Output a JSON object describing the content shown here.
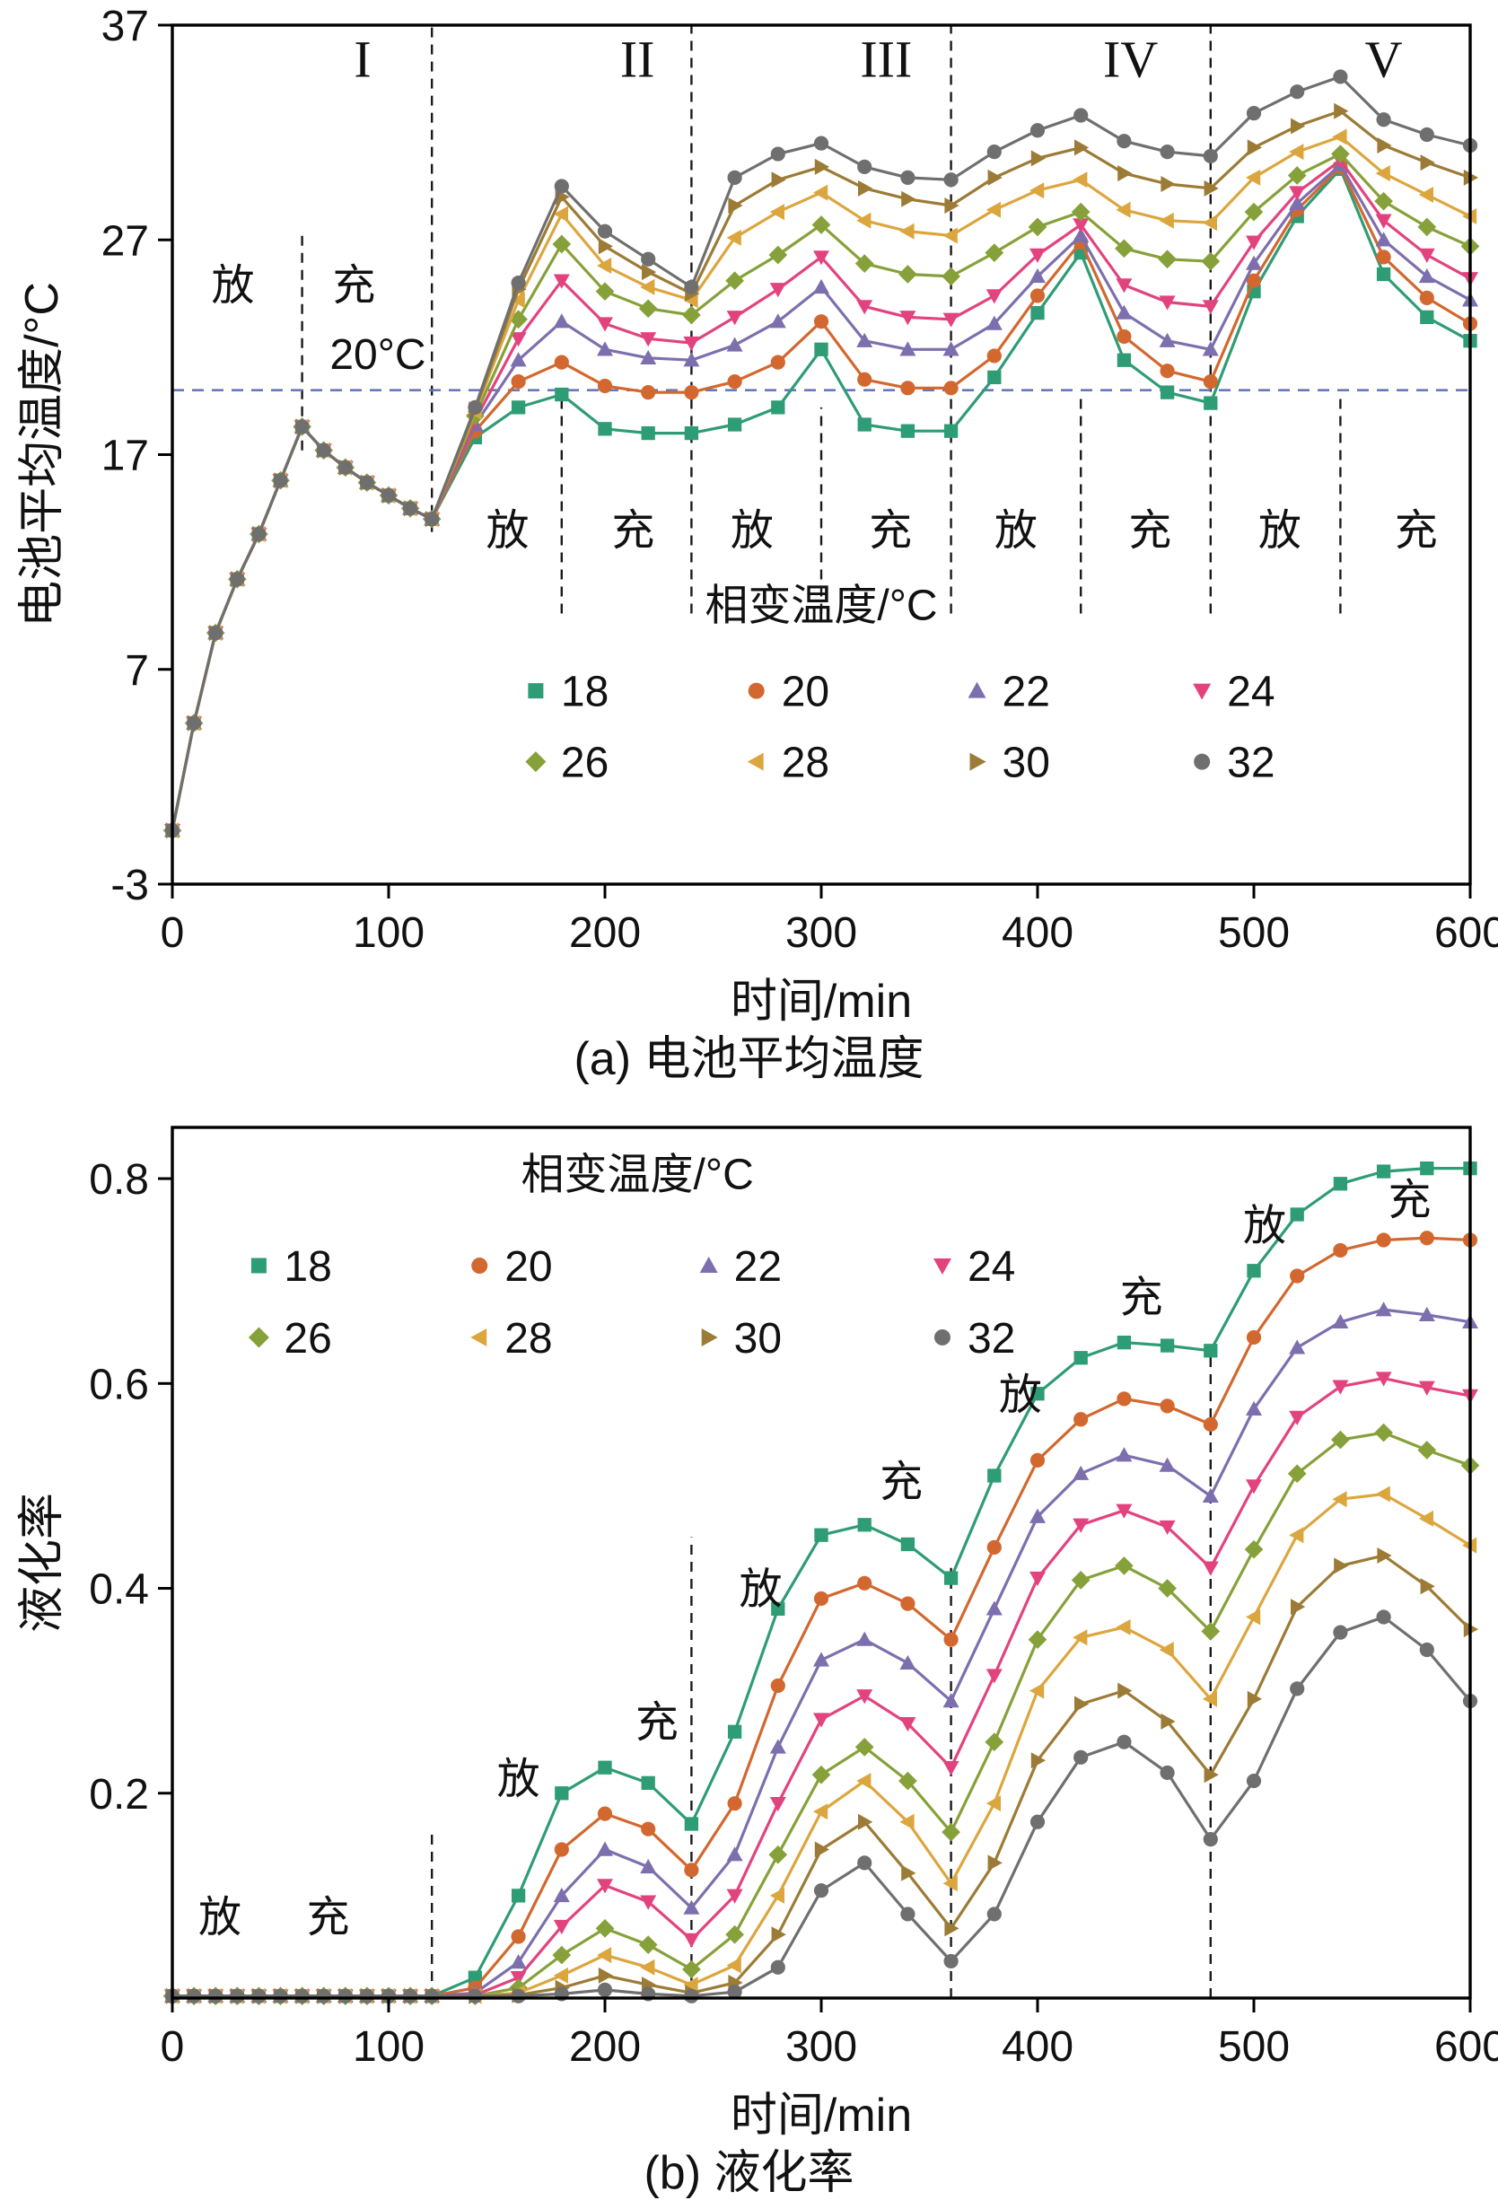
{
  "captions": {
    "a": "(a) 电池平均温度",
    "b": "(b) 液化率"
  },
  "chart_data": [
    {
      "id": "a",
      "type": "line",
      "title": "",
      "xlabel": "时间/min",
      "ylabel": "电池平均温度/°C",
      "xlim": [
        0,
        600
      ],
      "ylim": [
        -3,
        37
      ],
      "xticks": [
        0,
        100,
        200,
        300,
        400,
        500,
        600
      ],
      "yticks": [
        -3,
        7,
        17,
        27,
        37
      ],
      "grid": false,
      "plot": {
        "l": 192,
        "t": 28,
        "r": 1638,
        "b": 985
      },
      "legend": {
        "title": "相变温度/°C",
        "title_x": 300,
        "title_y": 9.3,
        "cols": [
          168,
          270,
          372,
          476
        ],
        "row_y": [
          6.0,
          2.7
        ],
        "rows": [
          [
            "18",
            "20",
            "22",
            "24"
          ],
          [
            "26",
            "28",
            "30",
            "32"
          ]
        ]
      },
      "ref_line": {
        "y": 20,
        "label": "20°C",
        "label_x": 95,
        "label_y": 21.0,
        "color": "#6677bb"
      },
      "region_labels": [
        {
          "text": "I",
          "x": 88,
          "y": 34.6
        },
        {
          "text": "II",
          "x": 215,
          "y": 34.6
        },
        {
          "text": "III",
          "x": 330,
          "y": 34.6
        },
        {
          "text": "IV",
          "x": 443,
          "y": 34.6
        },
        {
          "text": "V",
          "x": 560,
          "y": 34.6
        }
      ],
      "phase_labels": [
        {
          "t": "放",
          "x": 28,
          "y": 24.2
        },
        {
          "t": "充",
          "x": 84,
          "y": 24.2
        },
        {
          "t": "放",
          "x": 155,
          "y": 12.8
        },
        {
          "t": "充",
          "x": 213,
          "y": 12.8
        },
        {
          "t": "放",
          "x": 268,
          "y": 12.8
        },
        {
          "t": "充",
          "x": 332,
          "y": 12.8
        },
        {
          "t": "放",
          "x": 390,
          "y": 12.8
        },
        {
          "t": "充",
          "x": 452,
          "y": 12.8
        },
        {
          "t": "放",
          "x": 512,
          "y": 12.8
        },
        {
          "t": "充",
          "x": 575,
          "y": 12.8
        }
      ],
      "vlines": [
        {
          "x": 60,
          "y1": 17.2,
          "y2": 27.5
        },
        {
          "x": 120,
          "y1": 13.4,
          "y2": 37
        },
        {
          "x": 180,
          "y1": 9.6,
          "y2": 19.8
        },
        {
          "x": 240,
          "y1": 9.6,
          "y2": 37
        },
        {
          "x": 300,
          "y1": 9.6,
          "y2": 19.2
        },
        {
          "x": 360,
          "y1": 9.6,
          "y2": 37
        },
        {
          "x": 420,
          "y1": 9.6,
          "y2": 19.8
        },
        {
          "x": 480,
          "y1": 9.6,
          "y2": 37
        },
        {
          "x": 540,
          "y1": 9.6,
          "y2": 19.8
        }
      ],
      "x": [
        0,
        10,
        20,
        30,
        40,
        50,
        60,
        70,
        80,
        90,
        100,
        110,
        120,
        140,
        160,
        180,
        200,
        220,
        240,
        260,
        280,
        300,
        320,
        340,
        360,
        380,
        400,
        420,
        440,
        460,
        480,
        500,
        520,
        540,
        560,
        580,
        600
      ],
      "series": [
        {
          "name": "18",
          "color": "#2e9c74",
          "marker": "square",
          "values": [
            -0.5,
            4.5,
            8.7,
            11.2,
            13.3,
            15.8,
            18.3,
            17.2,
            16.4,
            15.7,
            15.1,
            14.5,
            14.0,
            17.8,
            19.2,
            19.8,
            18.2,
            18.0,
            18.0,
            18.4,
            19.2,
            21.9,
            18.4,
            18.1,
            18.1,
            20.6,
            23.6,
            26.4,
            21.4,
            19.9,
            19.4,
            24.6,
            28.1,
            30.3,
            25.4,
            23.4,
            22.3
          ]
        },
        {
          "name": "20",
          "color": "#d2682f",
          "marker": "circle",
          "values": [
            -0.5,
            4.5,
            8.7,
            11.2,
            13.3,
            15.8,
            18.3,
            17.2,
            16.4,
            15.7,
            15.1,
            14.5,
            14.0,
            18.1,
            20.4,
            21.3,
            20.2,
            19.9,
            19.9,
            20.4,
            21.3,
            23.2,
            20.5,
            20.1,
            20.1,
            21.6,
            24.4,
            26.9,
            22.5,
            20.9,
            20.4,
            25.1,
            28.4,
            30.4,
            26.2,
            24.3,
            23.1
          ]
        },
        {
          "name": "22",
          "color": "#7d6fae",
          "marker": "triangle-up",
          "values": [
            -0.5,
            4.5,
            8.7,
            11.2,
            13.3,
            15.8,
            18.3,
            17.2,
            16.4,
            15.7,
            15.1,
            14.5,
            14.0,
            18.4,
            21.4,
            23.2,
            21.9,
            21.5,
            21.4,
            22.1,
            23.2,
            24.8,
            22.3,
            21.9,
            21.9,
            23.1,
            25.3,
            27.2,
            23.6,
            22.3,
            21.9,
            25.9,
            28.7,
            30.5,
            27.0,
            25.3,
            24.2
          ]
        },
        {
          "name": "24",
          "color": "#e2437f",
          "marker": "triangle-down",
          "values": [
            -0.5,
            4.5,
            8.7,
            11.2,
            13.3,
            15.8,
            18.3,
            17.2,
            16.4,
            15.7,
            15.1,
            14.5,
            14.0,
            18.6,
            22.4,
            25.1,
            23.1,
            22.4,
            22.2,
            23.4,
            24.7,
            26.2,
            23.9,
            23.4,
            23.3,
            24.4,
            26.3,
            27.7,
            24.9,
            24.1,
            23.9,
            26.9,
            29.2,
            30.7,
            27.9,
            26.3,
            25.2
          ]
        },
        {
          "name": "26",
          "color": "#86a139",
          "marker": "diamond",
          "values": [
            -0.5,
            4.5,
            8.7,
            11.2,
            13.3,
            15.8,
            18.3,
            17.2,
            16.4,
            15.7,
            15.1,
            14.5,
            14.0,
            18.8,
            23.3,
            26.8,
            24.6,
            23.8,
            23.5,
            25.1,
            26.3,
            27.7,
            25.9,
            25.4,
            25.3,
            26.4,
            27.6,
            28.3,
            26.6,
            26.1,
            26.0,
            28.3,
            30.0,
            31.0,
            28.8,
            27.6,
            26.7
          ]
        },
        {
          "name": "28",
          "color": "#dca63e",
          "marker": "triangle-left",
          "values": [
            -0.5,
            4.5,
            8.7,
            11.2,
            13.3,
            15.8,
            18.3,
            17.2,
            16.4,
            15.7,
            15.1,
            14.5,
            14.0,
            19.0,
            24.2,
            28.2,
            25.8,
            24.8,
            24.2,
            27.1,
            28.3,
            29.2,
            27.9,
            27.4,
            27.2,
            28.4,
            29.3,
            29.8,
            28.4,
            27.9,
            27.8,
            29.9,
            31.1,
            31.8,
            30.1,
            29.1,
            28.1
          ]
        },
        {
          "name": "30",
          "color": "#9b7b35",
          "marker": "triangle-right",
          "values": [
            -0.5,
            4.5,
            8.7,
            11.2,
            13.3,
            15.8,
            18.3,
            17.2,
            16.4,
            15.7,
            15.1,
            14.5,
            14.0,
            19.1,
            24.7,
            29.0,
            26.7,
            25.5,
            24.5,
            28.6,
            29.8,
            30.4,
            29.4,
            28.9,
            28.6,
            29.9,
            30.8,
            31.3,
            30.1,
            29.6,
            29.4,
            31.3,
            32.3,
            33.0,
            31.4,
            30.6,
            29.9
          ]
        },
        {
          "name": "32",
          "color": "#6f6f6f",
          "marker": "circle",
          "values": [
            -0.5,
            4.5,
            8.7,
            11.2,
            13.3,
            15.8,
            18.3,
            17.2,
            16.4,
            15.7,
            15.1,
            14.5,
            14.0,
            19.2,
            25.0,
            29.5,
            27.4,
            26.1,
            24.8,
            29.9,
            31.0,
            31.5,
            30.4,
            29.9,
            29.8,
            31.1,
            32.1,
            32.8,
            31.6,
            31.1,
            30.9,
            32.9,
            33.9,
            34.6,
            32.6,
            31.9,
            31.4
          ]
        }
      ]
    },
    {
      "id": "b",
      "type": "line",
      "title": "",
      "xlabel": "时间/min",
      "ylabel": "液化率",
      "xlim": [
        0,
        600
      ],
      "ylim": [
        0,
        0.85
      ],
      "xticks": [
        0,
        100,
        200,
        300,
        400,
        500,
        600
      ],
      "yticks": [
        0.2,
        0.4,
        0.6,
        0.8
      ],
      "grid": false,
      "plot": {
        "l": 192,
        "t": 40,
        "r": 1638,
        "b": 1010
      },
      "legend": {
        "title": "相变温度/°C",
        "title_x": 215,
        "title_y": 0.79,
        "cols": [
          40,
          142,
          248,
          356
        ],
        "row_y": [
          0.715,
          0.645
        ],
        "rows": [
          [
            "18",
            "20",
            "22",
            "24"
          ],
          [
            "26",
            "28",
            "30",
            "32"
          ]
        ]
      },
      "region_labels": [],
      "phase_labels": [
        {
          "t": "放",
          "x": 22,
          "y": 0.065
        },
        {
          "t": "充",
          "x": 72,
          "y": 0.065
        },
        {
          "t": "放",
          "x": 160,
          "y": 0.2
        },
        {
          "t": "充",
          "x": 224,
          "y": 0.255
        },
        {
          "t": "放",
          "x": 272,
          "y": 0.385
        },
        {
          "t": "充",
          "x": 337,
          "y": 0.49
        },
        {
          "t": "放",
          "x": 392,
          "y": 0.575
        },
        {
          "t": "充",
          "x": 448,
          "y": 0.67
        },
        {
          "t": "放",
          "x": 505,
          "y": 0.74
        },
        {
          "t": "充",
          "x": 572,
          "y": 0.765
        }
      ],
      "vlines": [
        {
          "x": 120,
          "y1": 0,
          "y2": 0.165
        },
        {
          "x": 240,
          "y1": 0,
          "y2": 0.45
        },
        {
          "x": 360,
          "y1": 0,
          "y2": 0.42
        },
        {
          "x": 480,
          "y1": 0,
          "y2": 0.63
        }
      ],
      "x": [
        0,
        10,
        20,
        30,
        40,
        50,
        60,
        70,
        80,
        90,
        100,
        110,
        120,
        140,
        160,
        180,
        200,
        220,
        240,
        260,
        280,
        300,
        320,
        340,
        360,
        380,
        400,
        420,
        440,
        460,
        480,
        500,
        520,
        540,
        560,
        580,
        600
      ],
      "series": [
        {
          "name": "18",
          "color": "#2e9c74",
          "marker": "square",
          "values": [
            0.002,
            0.002,
            0.002,
            0.002,
            0.002,
            0.002,
            0.002,
            0.002,
            0.002,
            0.002,
            0.002,
            0.002,
            0.002,
            0.02,
            0.1,
            0.2,
            0.225,
            0.21,
            0.17,
            0.26,
            0.38,
            0.452,
            0.462,
            0.443,
            0.41,
            0.51,
            0.59,
            0.625,
            0.64,
            0.637,
            0.632,
            0.71,
            0.765,
            0.795,
            0.807,
            0.81,
            0.81
          ]
        },
        {
          "name": "20",
          "color": "#d2682f",
          "marker": "circle",
          "values": [
            0.002,
            0.002,
            0.002,
            0.002,
            0.002,
            0.002,
            0.002,
            0.002,
            0.002,
            0.002,
            0.002,
            0.002,
            0.002,
            0.01,
            0.06,
            0.145,
            0.18,
            0.165,
            0.125,
            0.19,
            0.305,
            0.39,
            0.405,
            0.385,
            0.35,
            0.44,
            0.525,
            0.565,
            0.585,
            0.578,
            0.56,
            0.645,
            0.705,
            0.73,
            0.74,
            0.742,
            0.74
          ]
        },
        {
          "name": "22",
          "color": "#7d6fae",
          "marker": "triangle-up",
          "values": [
            0.002,
            0.002,
            0.002,
            0.002,
            0.002,
            0.002,
            0.002,
            0.002,
            0.002,
            0.002,
            0.002,
            0.002,
            0.002,
            0.005,
            0.035,
            0.1,
            0.145,
            0.128,
            0.088,
            0.14,
            0.245,
            0.33,
            0.35,
            0.327,
            0.29,
            0.38,
            0.47,
            0.512,
            0.53,
            0.52,
            0.49,
            0.575,
            0.635,
            0.66,
            0.672,
            0.667,
            0.66
          ]
        },
        {
          "name": "24",
          "color": "#e2437f",
          "marker": "triangle-down",
          "values": [
            0.002,
            0.002,
            0.002,
            0.002,
            0.002,
            0.002,
            0.002,
            0.002,
            0.002,
            0.002,
            0.002,
            0.002,
            0.002,
            0.003,
            0.02,
            0.07,
            0.11,
            0.094,
            0.057,
            0.1,
            0.19,
            0.272,
            0.295,
            0.268,
            0.225,
            0.315,
            0.41,
            0.462,
            0.476,
            0.46,
            0.42,
            0.5,
            0.567,
            0.597,
            0.605,
            0.596,
            0.588
          ]
        },
        {
          "name": "26",
          "color": "#86a139",
          "marker": "diamond",
          "values": [
            0.002,
            0.002,
            0.002,
            0.002,
            0.002,
            0.002,
            0.002,
            0.002,
            0.002,
            0.002,
            0.002,
            0.002,
            0.002,
            0.002,
            0.01,
            0.042,
            0.068,
            0.052,
            0.028,
            0.062,
            0.14,
            0.218,
            0.245,
            0.212,
            0.162,
            0.25,
            0.35,
            0.408,
            0.422,
            0.4,
            0.358,
            0.438,
            0.512,
            0.545,
            0.552,
            0.535,
            0.52
          ]
        },
        {
          "name": "28",
          "color": "#dca63e",
          "marker": "triangle-left",
          "values": [
            0.002,
            0.002,
            0.002,
            0.002,
            0.002,
            0.002,
            0.002,
            0.002,
            0.002,
            0.002,
            0.002,
            0.002,
            0.002,
            0.002,
            0.005,
            0.022,
            0.042,
            0.03,
            0.013,
            0.032,
            0.1,
            0.182,
            0.212,
            0.172,
            0.112,
            0.19,
            0.3,
            0.352,
            0.362,
            0.34,
            0.292,
            0.372,
            0.452,
            0.487,
            0.492,
            0.468,
            0.442
          ]
        },
        {
          "name": "30",
          "color": "#9b7b35",
          "marker": "triangle-right",
          "values": [
            0.002,
            0.002,
            0.002,
            0.002,
            0.002,
            0.002,
            0.002,
            0.002,
            0.002,
            0.002,
            0.002,
            0.002,
            0.002,
            0.002,
            0.003,
            0.01,
            0.022,
            0.013,
            0.005,
            0.015,
            0.062,
            0.145,
            0.172,
            0.122,
            0.068,
            0.132,
            0.232,
            0.287,
            0.3,
            0.27,
            0.218,
            0.292,
            0.382,
            0.422,
            0.432,
            0.402,
            0.36
          ]
        },
        {
          "name": "32",
          "color": "#6f6f6f",
          "marker": "circle",
          "values": [
            0.002,
            0.002,
            0.002,
            0.002,
            0.002,
            0.002,
            0.002,
            0.002,
            0.002,
            0.002,
            0.002,
            0.002,
            0.002,
            0.002,
            0.002,
            0.004,
            0.008,
            0.004,
            0.002,
            0.006,
            0.03,
            0.105,
            0.132,
            0.082,
            0.036,
            0.082,
            0.172,
            0.235,
            0.25,
            0.22,
            0.155,
            0.212,
            0.302,
            0.357,
            0.372,
            0.34,
            0.29
          ]
        }
      ]
    }
  ]
}
